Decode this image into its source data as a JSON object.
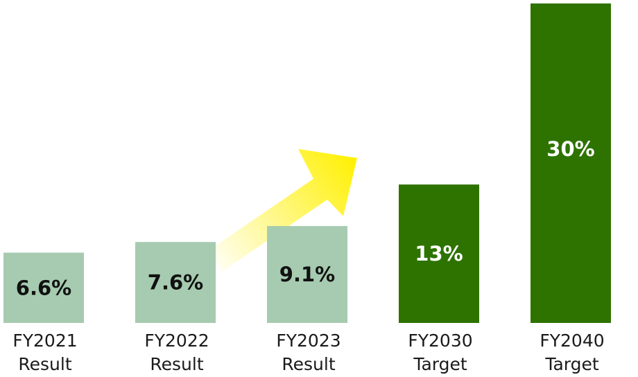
{
  "chart_data": {
    "type": "bar",
    "title": "",
    "xlabel": "",
    "ylabel": "",
    "ylim": [
      0,
      30
    ],
    "grid": false,
    "categories": [
      [
        "FY2021",
        "Result"
      ],
      [
        "FY2022",
        "Result"
      ],
      [
        "FY2023",
        "Result"
      ],
      [
        "FY2030",
        "Target"
      ],
      [
        "FY2040",
        "Target"
      ]
    ],
    "values": [
      6.6,
      7.6,
      9.1,
      13,
      30
    ],
    "data_labels": [
      "6.6%",
      "7.6%",
      "9.1%",
      "13%",
      "30%"
    ],
    "bar_kinds": [
      "result",
      "result",
      "result",
      "target",
      "target"
    ],
    "colors": {
      "result": "#a6cbb0",
      "target": "#2e7300",
      "result_label": "#111111",
      "target_label": "#ffffff",
      "arrow": "#fff000"
    },
    "annotation": "upward-trend-arrow"
  }
}
